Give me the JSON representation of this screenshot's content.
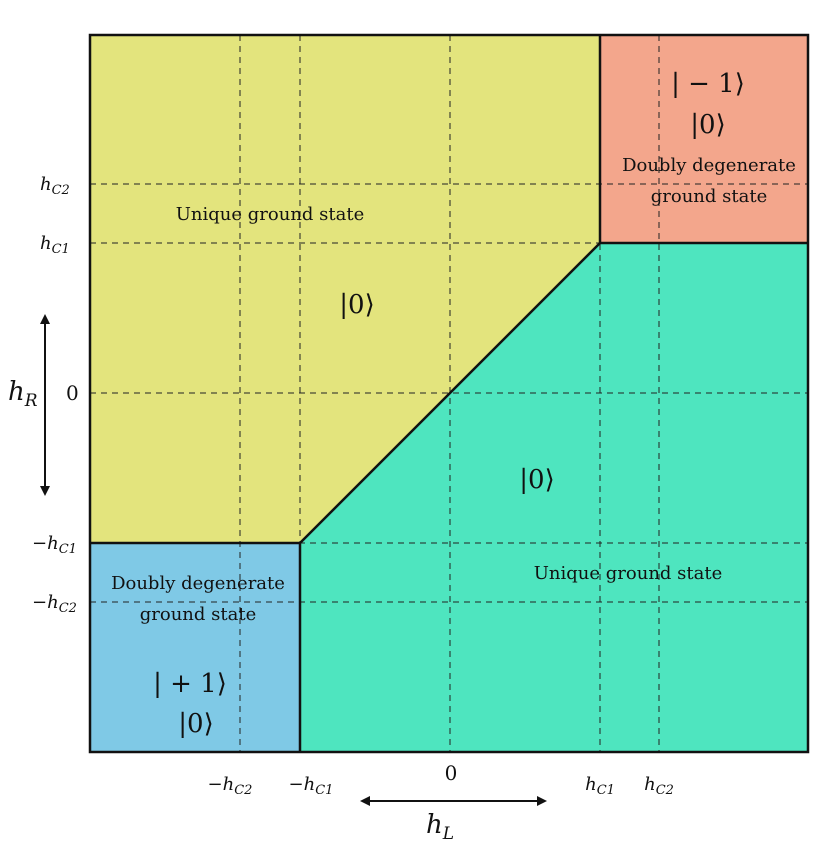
{
  "colors": {
    "yellow_region": "#e3e47d",
    "green_region": "#4ee5bf",
    "red_region": "#f3a68c",
    "blue_region": "#7fc9e6",
    "outline": "#111111"
  },
  "regions": {
    "top_left_unique": {
      "description_label": "Unique ground state",
      "state_label": "|0⟩"
    },
    "bottom_right_unique": {
      "description_label": "Unique ground state",
      "state_label": "|0⟩"
    },
    "top_right_degenerate": {
      "description_line1": "Doubly degenerate",
      "description_line2": "ground state",
      "state_label_1": "| − 1⟩",
      "state_label_2": "|0⟩"
    },
    "bottom_left_degenerate": {
      "description_line1": "Doubly degenerate",
      "description_line2": "ground state",
      "state_label_1": "| + 1⟩",
      "state_label_2": "|0⟩"
    }
  },
  "x_ticks": [
    {
      "base": "−h",
      "sub": "C2"
    },
    {
      "base": "−h",
      "sub": "C1"
    },
    {
      "base": "0",
      "sub": ""
    },
    {
      "base": "h",
      "sub": "C1"
    },
    {
      "base": "h",
      "sub": "C2"
    }
  ],
  "y_ticks": [
    {
      "base": "h",
      "sub": "C2"
    },
    {
      "base": "h",
      "sub": "C1"
    },
    {
      "base": "0",
      "sub": ""
    },
    {
      "base": "−h",
      "sub": "C1"
    },
    {
      "base": "−h",
      "sub": "C2"
    }
  ],
  "axes": {
    "x_label_base": "h",
    "x_label_sub": "L",
    "y_label_base": "h",
    "y_label_sub": "R"
  }
}
